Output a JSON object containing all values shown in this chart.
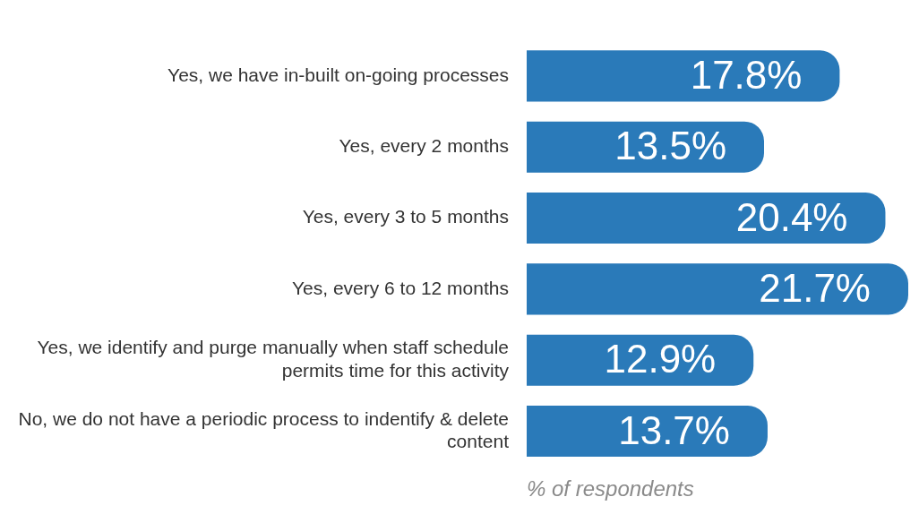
{
  "chart_data": {
    "type": "bar",
    "orientation": "horizontal",
    "xlabel": "% of respondents",
    "categories": [
      "Yes, we have in-built on-going processes",
      "Yes, every 2 months",
      "Yes, every 3 to 5 months",
      "Yes, every 6 to 12 months",
      "Yes, we identify and purge manually when staff schedule permits time for this activity",
      "No, we do not have a periodic process to indentify & delete content"
    ],
    "values": [
      17.8,
      13.5,
      20.4,
      21.7,
      12.9,
      13.7
    ],
    "value_labels": [
      "17.8%",
      "13.5%",
      "20.4%",
      "21.7%",
      "12.9%",
      "13.7%"
    ],
    "color": "#2a7ab9",
    "grid": false,
    "legend": false
  }
}
